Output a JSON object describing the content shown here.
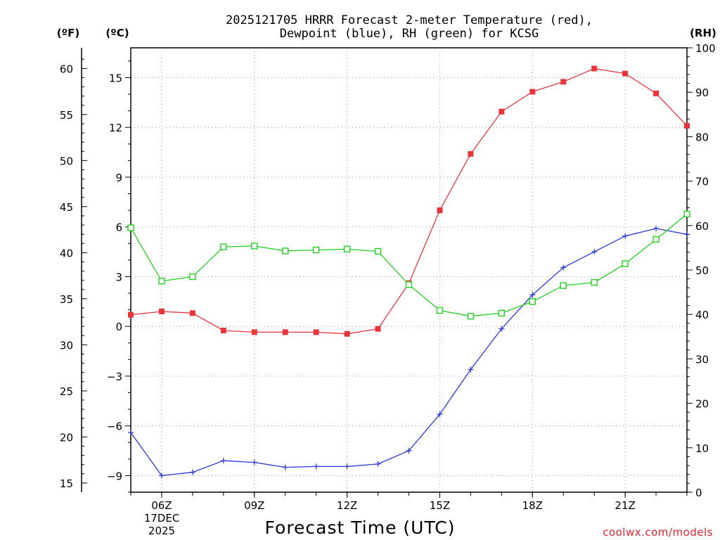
{
  "chart_data": {
    "type": "line",
    "title_line1": "2025121705 HRRR Forecast 2-meter Temperature (red),",
    "title_line2": "Dewpoint (blue), RH (green) for KCSG",
    "xlabel": "Forecast Time (UTC)",
    "credit": "coolwx.com/models",
    "unit_f": "(ºF)",
    "unit_c": "(ºC)",
    "unit_rh": "(RH)",
    "x_hours": [
      5,
      6,
      7,
      8,
      9,
      10,
      11,
      12,
      13,
      14,
      15,
      16,
      17,
      18,
      19,
      20,
      21,
      22,
      23
    ],
    "xlim": [
      5,
      23
    ],
    "x_ticks": [
      {
        "hour": 6,
        "label": "06Z"
      },
      {
        "hour": 9,
        "label": "09Z"
      },
      {
        "hour": 12,
        "label": "12Z"
      },
      {
        "hour": 15,
        "label": "15Z"
      },
      {
        "hour": 18,
        "label": "18Z"
      },
      {
        "hour": 21,
        "label": "21Z"
      }
    ],
    "date_label_1": "17DEC",
    "date_label_2": "2025",
    "y_celsius": {
      "lim": [
        -10.0,
        16.8
      ],
      "ticks": [
        15,
        12,
        9,
        6,
        3,
        0,
        -3,
        -6,
        -9
      ]
    },
    "y_fahrenheit": {
      "ticks": [
        60,
        55,
        50,
        45,
        40,
        35,
        30,
        25,
        20,
        15
      ]
    },
    "y_rh": {
      "lim": [
        0,
        100
      ],
      "ticks": [
        100,
        90,
        80,
        70,
        60,
        50,
        40,
        30,
        20,
        10,
        0
      ]
    },
    "series": [
      {
        "name": "Temperature",
        "axis": "c",
        "color": "#e8353c",
        "marker": "filled-square",
        "values": [
          0.7,
          0.9,
          0.8,
          -0.25,
          -0.35,
          -0.35,
          -0.35,
          -0.45,
          -0.15,
          2.6,
          7.0,
          10.4,
          12.95,
          14.15,
          14.75,
          15.55,
          15.25,
          14.05,
          12.1
        ]
      },
      {
        "name": "Dewpoint",
        "axis": "c",
        "color": "#2a3ad8",
        "marker": "plus",
        "values": [
          -6.4,
          -9.0,
          -8.8,
          -8.1,
          -8.2,
          -8.5,
          -8.45,
          -8.45,
          -8.3,
          -7.5,
          -5.3,
          -2.6,
          -0.15,
          1.9,
          3.55,
          4.5,
          5.45,
          5.9,
          5.55
        ]
      },
      {
        "name": "RH",
        "axis": "rh",
        "color": "#22d022",
        "marker": "open-square",
        "values": [
          59.5,
          47.5,
          48.5,
          55.2,
          55.4,
          54.3,
          54.5,
          54.7,
          54.2,
          46.7,
          40.9,
          39.6,
          40.3,
          42.9,
          46.5,
          47.2,
          51.4,
          56.9,
          62.6
        ]
      }
    ]
  }
}
